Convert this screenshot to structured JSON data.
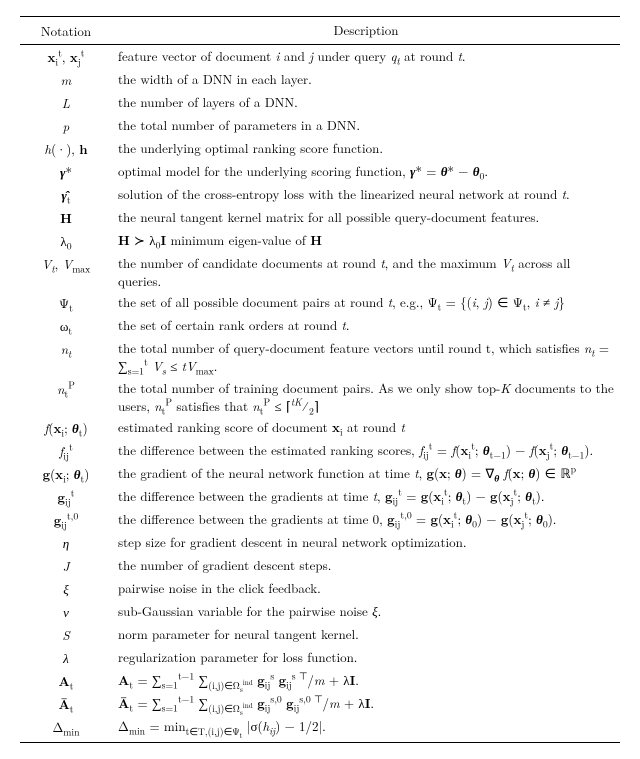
{
  "header": {
    "notation": "Notation",
    "description": "Description"
  },
  "rows": [
    {
      "n": "<span class='nb'>x</span><sub>i</sub><sup>t</sup>, <span class='nb'>x</span><sub>j</sub><sup>t</sup>",
      "d": "feature vector of document <i>i</i> and <i>j</i> under query <i>q<sub>t</sub></i> at round <i>t</i>."
    },
    {
      "n": "<i>m</i>",
      "d": "the width of a DNN in each layer."
    },
    {
      "n": "<i>L</i>",
      "d": "the number of layers of a DNN."
    },
    {
      "n": "<i>p</i>",
      "d": "the total number of parameters in a DNN."
    },
    {
      "n": "<i>h</i>(·), <span class='nb'>h</span>",
      "d": "the underlying optimal ranking score function."
    },
    {
      "n": "<b><i>γ</i></b>*",
      "d": "optimal model for the underlying scoring function, <b><i>γ</i></b>* = <b><i>θ</i></b>* − <b><i>θ</i></b><sub>0</sub>."
    },
    {
      "n": "<b><i>γ̂</i></b><sub>t</sub>",
      "d": "solution of the cross-entropy loss with the linearized neural network at round <i>t</i>."
    },
    {
      "n": "<span class='nb'>H</span>",
      "d": "the neural tangent kernel matrix for all possible query-document features."
    },
    {
      "n": "λ<sub>0</sub>",
      "d": "<span class='nb'>H</span> ≻ λ<sub>0</sub><span class='nb'>I</span> minimum eigen-value of <span class='nb'>H</span>"
    },
    {
      "n": "<i>V<sub>t</sub></i>, <i>V</i><sub>max</sub>",
      "d": "the number of candidate documents at round <i>t</i>, and the maximum <i>V<sub>t</sub></i> across all queries."
    },
    {
      "n": "Ψ<sub>t</sub>",
      "d": "the set of all possible document pairs at round <i>t</i>, e.g., Ψ<sub>t</sub> = {(<i>i</i>, <i>j</i>) ∈ Ψ<sub>t</sub>, <i>i</i> ≠ <i>j</i>}"
    },
    {
      "n": "ω<sub>t</sub>",
      "d": "the set of certain rank orders at round <i>t</i>."
    },
    {
      "n": "<i>n<sub>t</sub></i>",
      "d": "the total number of query-document feature vectors until round t, which satisfies <i>n<sub>t</sub></i> = <span class='sum'>∑</span><sub>s=1</sub><sup>t</sup> <i>V<sub>s</sub></i> ≤ <i>tV</i><sub>max</sub>."
    },
    {
      "n": "<i>n</i><sub>t</sub><sup>P</sup>",
      "d": "the total number of training document pairs. As we only show top-<i>K</i> documents to the users, <i>n</i><sub>t</sub><sup>P</sup> satisfies that <i>n</i><sub>t</sub><sup>P</sup> ≤ ⌈<sup><i>tK</i></sup>&frasl;<sub>2</sub>⌉"
    },
    {
      "n": "<i>f</i>(<span class='nb'>x</span><sub>i</sub>; <b><i>θ</i></b><sub>t</sub>)",
      "d": "estimated ranking score of document <span class='nb'>x</span><sub>i</sub> at round <i>t</i>"
    },
    {
      "n": "<i>f</i><sub>ij</sub><sup>t</sup>",
      "d": "the difference between the estimated ranking scores, <i>f</i><sub>ij</sub><sup>t</sup> = <i>f</i>(<span class='nb'>x</span><sub>i</sub><sup>t</sup>; <b><i>θ</i></b><sub>t−1</sub>) − <i>f</i>(<span class='nb'>x</span><sub>j</sub><sup>t</sup>; <b><i>θ</i></b><sub>t−1</sub>)."
    },
    {
      "n": "<span class='nb'>g</span>(<span class='nb'>x</span><sub>i</sub>; <b><i>θ</i></b><sub>t</sub>)",
      "d": "the gradient of the neural network function at time <i>t</i>, <span class='nb'>g</span>(<span class='nb'>x</span>; <b><i>θ</i></b>) = ∇<sub><b><i>θ</i></b></sub> <i>f</i>(<span class='nb'>x</span>; <b><i>θ</i></b>) ∈ ℝ<sup>p</sup>"
    },
    {
      "n": "<span class='nb'>g</span><sub>ij</sub><sup>t</sup>",
      "d": "the difference between the gradients at time <i>t</i>, <span class='nb'>g</span><sub>ij</sub><sup>t</sup> = <span class='nb'>g</span>(<span class='nb'>x</span><sub>i</sub><sup>t</sup>; <b><i>θ</i></b><sub>t</sub>) − <span class='nb'>g</span>(<span class='nb'>x</span><sub>j</sub><sup>t</sup>; <b><i>θ</i></b><sub>t</sub>)."
    },
    {
      "n": "<span class='nb'>g</span><sub>ij</sub><sup>t,0</sup>",
      "d": "the difference between the gradients at time 0, <span class='nb'>g</span><sub>ij</sub><sup>t,0</sup> = <span class='nb'>g</span>(<span class='nb'>x</span><sub>i</sub><sup>t</sup>; <b><i>θ</i></b><sub>0</sub>) − <span class='nb'>g</span>(<span class='nb'>x</span><sub>j</sub><sup>t</sup>; <b><i>θ</i></b><sub>0</sub>)."
    },
    {
      "n": "<i>η</i>",
      "d": "step size for gradient descent in neural network optimization."
    },
    {
      "n": "<i>J</i>",
      "d": "the number of gradient descent steps."
    },
    {
      "n": "<i>ξ</i>",
      "d": "pairwise noise in the click feedback."
    },
    {
      "n": "<i>ν</i>",
      "d": "sub-Gaussian variable for the pairwise noise <i>ξ</i>."
    },
    {
      "n": "<i>S</i>",
      "d": "norm parameter for neural tangent kernel."
    },
    {
      "n": "<i>λ</i>",
      "d": "regularization parameter for loss function."
    },
    {
      "n": "<span class='nb'>A</span><sub>t</sub>",
      "d": "<span class='nb'>A</span><sub>t</sub> = <span class='sum'>∑</span><sub>s=1</sub><sup>t−1</sup> <span class='sum'>∑</span><sub>(i,j)∈Ω<sub>s</sub><sup>ind</sup></sub> <span class='nb'>g</span><sub>ij</sub><sup>s</sup> <span class='nb'>g</span><sub>ij</sub><sup>s ⊤</sup>/<i>m</i> + λ<span class='nb'>I</span>."
    },
    {
      "n": "<span class='nb'>Ā</span><sub>t</sub>",
      "d": "<span class='nb'>Ā</span><sub>t</sub> = <span class='sum'>∑</span><sub>s=1</sub><sup>t−1</sup> <span class='sum'>∑</span><sub>(i,j)∈Ω<sub>s</sub><sup>ind</sup></sub> <span class='nb'>g</span><sub>ij</sub><sup>s,0</sup> <span class='nb'>g</span><sub>ij</sub><sup>s,0 ⊤</sup>/<i>m</i> + λ<span class='nb'>I</span>."
    },
    {
      "n": "Δ<sub>min</sub>",
      "d": "Δ<sub>min</sub> = min<sub>t∈T,(i,j)∈Ψ<sub>t</sub></sub> |σ(<i>h<sub>ij</sub></i>) − 1/2|."
    }
  ]
}
